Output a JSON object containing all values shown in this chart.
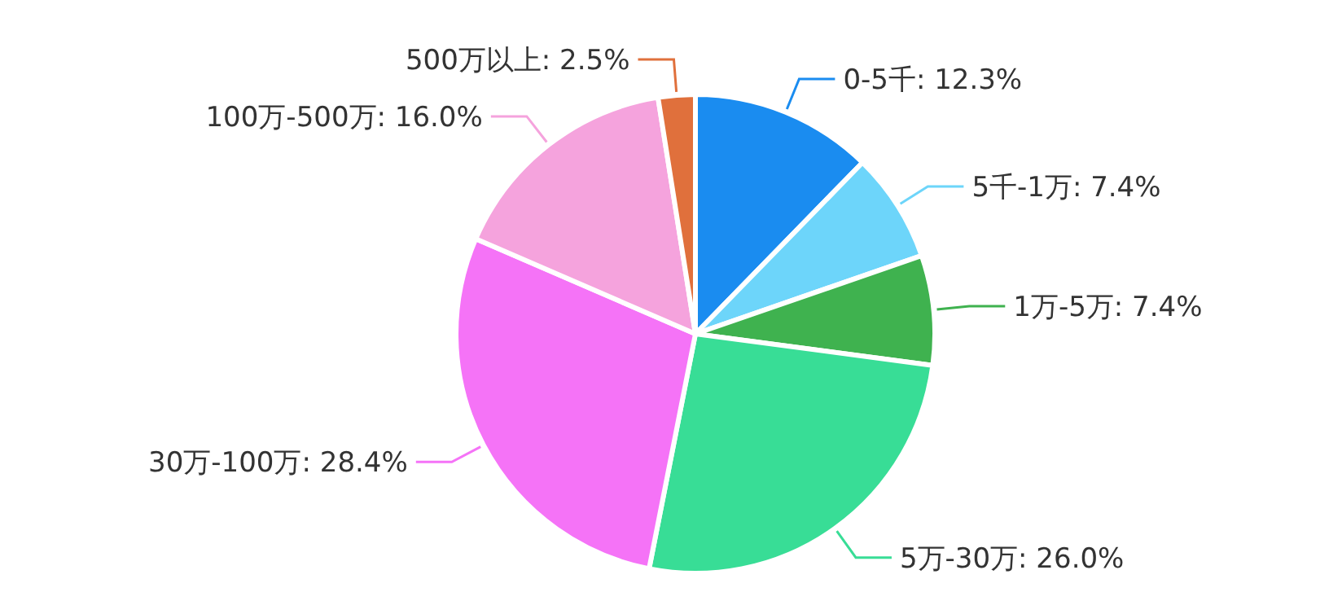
{
  "chart_data": {
    "type": "pie",
    "categories": [
      "0-5千",
      "5千-1万",
      "1万-5万",
      "5万-30万",
      "30万-100万",
      "100万-500万",
      "500万以上"
    ],
    "values": [
      12.3,
      7.4,
      7.4,
      26.0,
      28.4,
      16.0,
      2.5
    ],
    "value_labels": [
      "12.3%",
      "7.4%",
      "7.4%",
      "26.0%",
      "28.4%",
      "16.0%",
      "2.5%"
    ],
    "colors": [
      "#1a8cf0",
      "#6dd5fa",
      "#3fb24f",
      "#38dd96",
      "#f573f7",
      "#f5a3dd",
      "#e0703c"
    ]
  }
}
